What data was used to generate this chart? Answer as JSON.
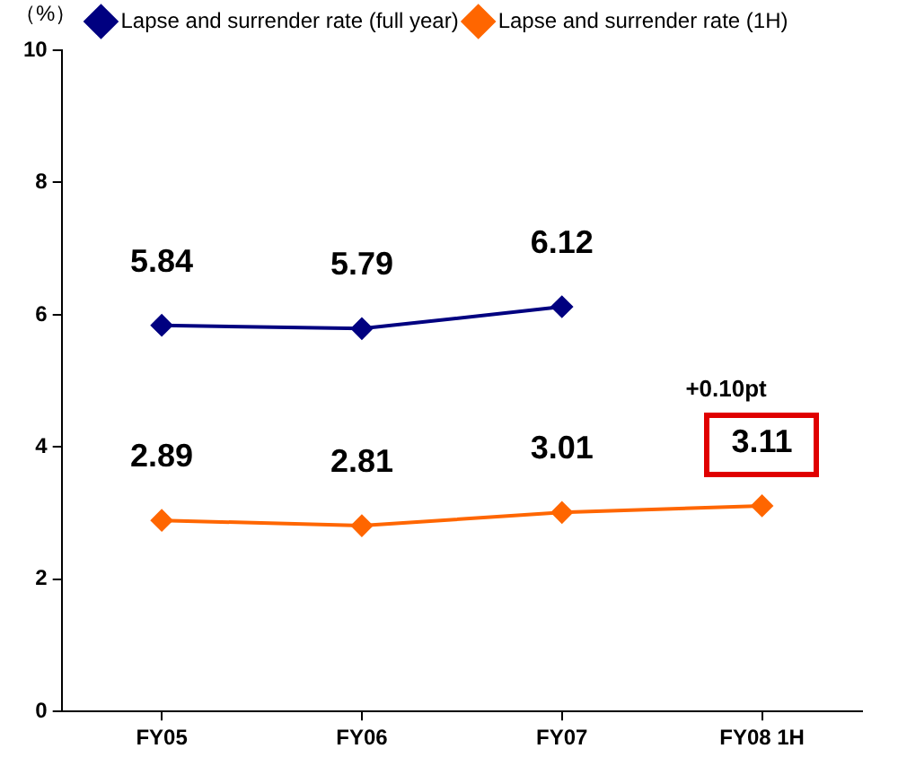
{
  "chart_data": {
    "type": "line",
    "ylabel": "（%）",
    "categories": [
      "FY05",
      "FY06",
      "FY07",
      "FY08 1H"
    ],
    "series": [
      {
        "name": "Lapse and surrender rate (full year)",
        "color": "#000080",
        "values": [
          5.84,
          5.79,
          6.12,
          null
        ]
      },
      {
        "name": "Lapse and surrender rate (1H)",
        "color": "#ff6600",
        "values": [
          2.89,
          2.81,
          3.01,
          3.11
        ]
      }
    ],
    "ylim": [
      0,
      10
    ],
    "yticks": [
      0,
      2,
      4,
      6,
      8,
      10
    ],
    "grid": false,
    "legend": "top",
    "marker": "diamond",
    "line_style": "solid",
    "data_labels": true,
    "annotations": [
      "+0.10pt"
    ]
  }
}
